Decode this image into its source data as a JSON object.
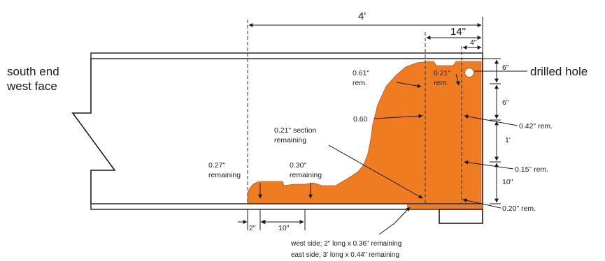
{
  "labels": {
    "south_end": "south end",
    "west_face": "west face",
    "drilled_hole": "drilled hole",
    "rem_061_a": "0.61\"",
    "rem_061_b": "rem.",
    "rem_021_a": "0.21\"",
    "rem_021_b": "rem.",
    "rem_060": "0.60",
    "section_a": "0.21\" section",
    "section_b": "remaining",
    "rem_027_a": "0.27\"",
    "rem_027_b": "remaining",
    "rem_030_a": "0.30\"",
    "rem_030_b": "remaining",
    "rem_042": "0.42\" rem.",
    "rem_015": "0.15\" rem.",
    "rem_020": "0.20\" rem.",
    "west_side": "west side; 2\" long x 0.36\" remaining",
    "east_side": "east side; 3' long x 0.44\" remaining"
  },
  "dimensions": {
    "top_4ft": "4'",
    "top_14in": "14\"",
    "top_4in": "4\"",
    "right_6in_a": "6\"",
    "right_6in_b": "6\"",
    "right_1ft": "1'",
    "right_10in": "10\"",
    "bottom_2in": "2\"",
    "bottom_10in": "10\""
  },
  "colors": {
    "corrosion": "#f07c21",
    "line": "#1a1a1a"
  }
}
